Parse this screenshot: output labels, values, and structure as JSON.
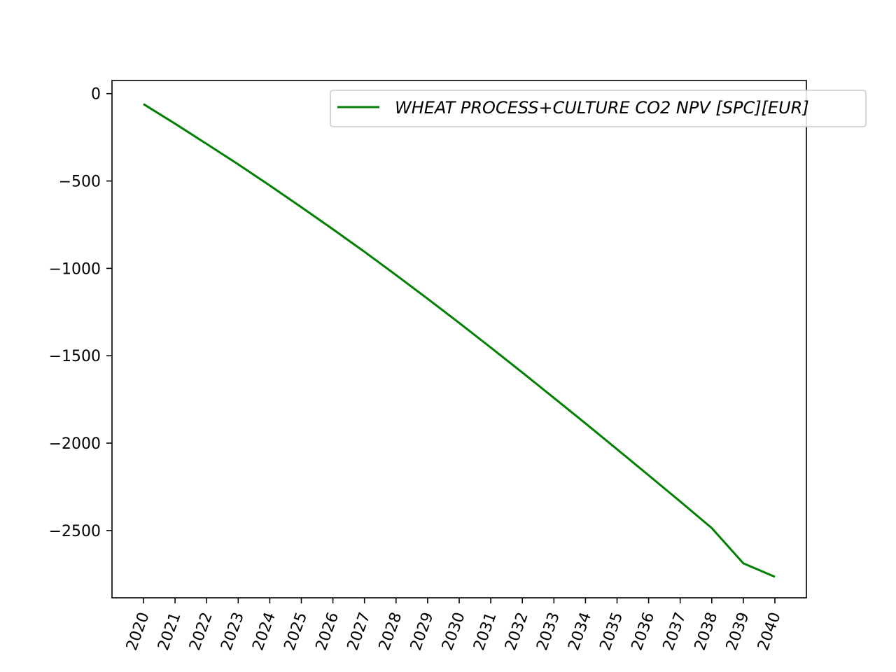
{
  "chart_data": {
    "type": "line",
    "title": "",
    "xlabel": "",
    "ylabel": "",
    "x": [
      "2020",
      "2021",
      "2022",
      "2023",
      "2024",
      "2025",
      "2026",
      "2027",
      "2028",
      "2029",
      "2030",
      "2031",
      "2032",
      "2033",
      "2034",
      "2035",
      "2036",
      "2037",
      "2038",
      "2039",
      "2040"
    ],
    "series": [
      {
        "name": "WHEAT PROCESS+CULTURE CO2 NPV [SPC][EUR]",
        "color": "#008000",
        "values": [
          -60,
          -172,
          -288,
          -405,
          -526,
          -650,
          -776,
          -905,
          -1038,
          -1174,
          -1312,
          -1453,
          -1596,
          -1741,
          -1887,
          -2035,
          -2184,
          -2334,
          -2486,
          -2688,
          -2765
        ]
      }
    ],
    "ylim": [
      -2885,
      75
    ],
    "yticks": [
      0,
      -500,
      -1000,
      -1500,
      -2000,
      -2500
    ],
    "ytick_labels": [
      "0",
      "−500",
      "−1000",
      "−1500",
      "−2000",
      "−2500"
    ],
    "grid": false,
    "legend_position": "top-right"
  }
}
